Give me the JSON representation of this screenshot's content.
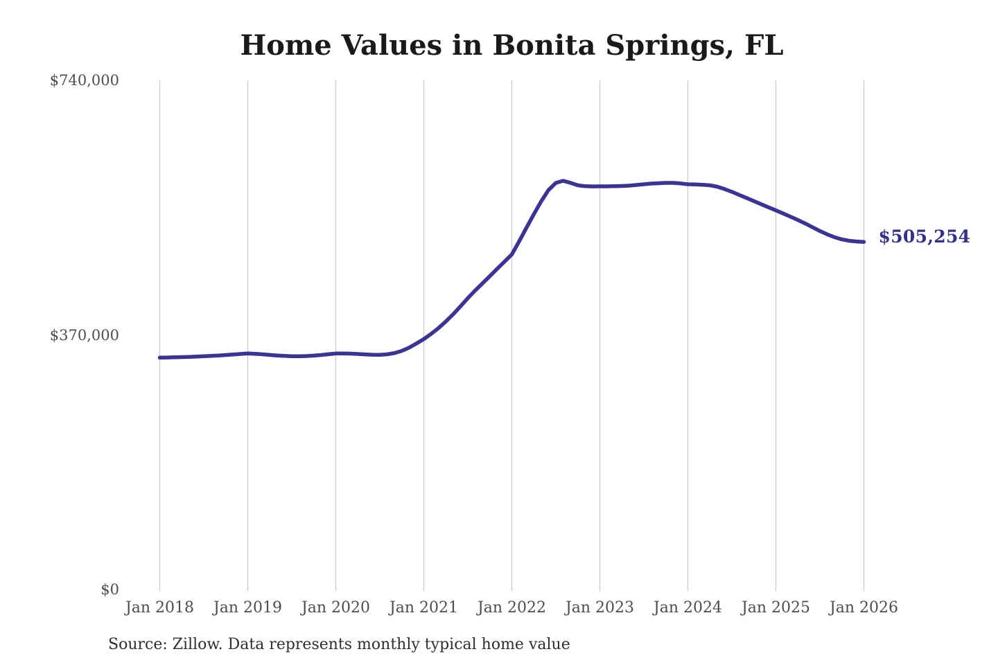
{
  "chart_data": {
    "type": "line",
    "title": "Home Values in Bonita Springs, FL",
    "source_note": "Source: Zillow. Data represents monthly typical home value",
    "end_label": "$505,254",
    "end_value": 505254,
    "x_ticks": [
      "Jan 2018",
      "Jan 2019",
      "Jan 2020",
      "Jan 2021",
      "Jan 2022",
      "Jan 2023",
      "Jan 2024",
      "Jan 2025",
      "Jan 2026"
    ],
    "y_ticks": [
      {
        "label": "$740,000",
        "value": 740000
      },
      {
        "label": "$370,000",
        "value": 370000
      },
      {
        "label": "$0",
        "value": 0
      }
    ],
    "ylim": [
      0,
      740000
    ],
    "grid": "vertical",
    "legend": "none",
    "series": [
      {
        "name": "Typical home value",
        "unit": "USD",
        "frequency": "monthly",
        "start": "2018-01",
        "end": "2026-01",
        "values": [
          337000,
          337200,
          337500,
          337800,
          338100,
          338500,
          339000,
          339500,
          340100,
          340800,
          341500,
          342300,
          343000,
          342600,
          341800,
          340900,
          340100,
          339500,
          339100,
          339000,
          339300,
          339900,
          340800,
          341900,
          343000,
          343100,
          342800,
          342300,
          341700,
          341200,
          341000,
          341800,
          343600,
          346800,
          351500,
          357500,
          364000,
          371500,
          380000,
          389500,
          400000,
          411500,
          423500,
          434500,
          445000,
          455500,
          466000,
          476500,
          487000,
          506000,
          526000,
          545500,
          564000,
          580500,
          591000,
          594000,
          591000,
          587500,
          586200,
          585900,
          586000,
          586000,
          586200,
          586500,
          587000,
          588000,
          589000,
          590000,
          590500,
          591000,
          591000,
          590200,
          589000,
          588800,
          588300,
          587500,
          585500,
          582000,
          578000,
          573500,
          569000,
          564500,
          560000,
          555500,
          551000,
          546500,
          541800,
          537000,
          532000,
          526500,
          521000,
          516200,
          512000,
          508800,
          506800,
          505800,
          505254
        ]
      }
    ],
    "colors": {
      "line": "#3b3494",
      "end_label": "#333088",
      "grid": "#c9c9c9",
      "axis_text": "#4d4d4d",
      "title_text": "#1a1a1a",
      "source_text": "#2e2e2e",
      "background": "#ffffff"
    }
  }
}
